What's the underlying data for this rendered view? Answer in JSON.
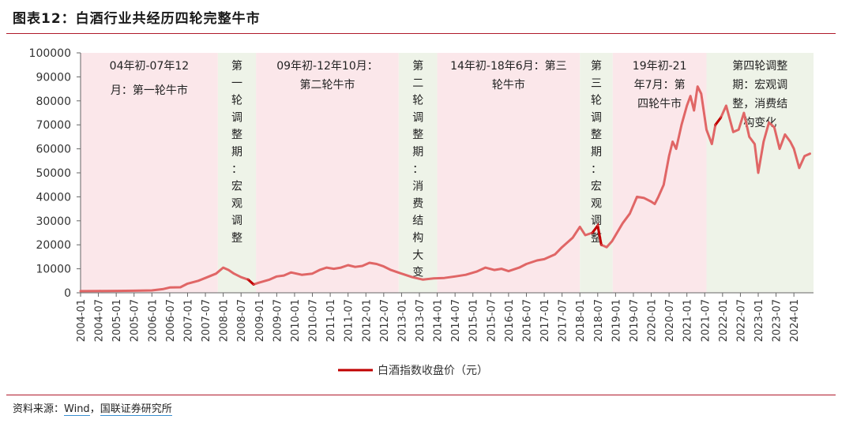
{
  "header": {
    "title": "图表12：白酒行业共经历四轮完整牛市"
  },
  "footer": {
    "source_prefix": "资料来源：",
    "source_wind": "Wind",
    "source_sep": "，",
    "source_org": "国联证券研究所"
  },
  "chart_data": {
    "type": "line",
    "title": "图表12：白酒行业共经历四轮完整牛市",
    "xlabel": "",
    "ylabel": "",
    "ylim": [
      0,
      100000
    ],
    "yticks": [
      0,
      10000,
      20000,
      30000,
      40000,
      50000,
      60000,
      70000,
      80000,
      90000,
      100000
    ],
    "grid": false,
    "legend_position": "bottom-center",
    "line_color": "#e06666",
    "highlight_color": "#c00000",
    "bull_color": "#fbe7ea",
    "adjust_color": "#eef3e8",
    "x_categories": [
      "2004-01",
      "2004-07",
      "2005-01",
      "2005-07",
      "2006-01",
      "2006-07",
      "2007-01",
      "2007-07",
      "2008-01",
      "2008-07",
      "2009-01",
      "2009-07",
      "2010-01",
      "2010-07",
      "2011-01",
      "2011-07",
      "2012-01",
      "2012-07",
      "2013-01",
      "2013-07",
      "2014-01",
      "2014-07",
      "2015-01",
      "2015-07",
      "2016-01",
      "2016-07",
      "2017-01",
      "2017-07",
      "2018-01",
      "2018-07",
      "2019-01",
      "2019-07",
      "2020-01",
      "2020-07",
      "2021-01",
      "2021-07",
      "2022-01",
      "2022-07",
      "2023-01",
      "2023-07",
      "2024-01"
    ],
    "series": [
      {
        "name": "白酒指数收盘价（元）",
        "x": [
          2004.0,
          2004.5,
          2005.0,
          2005.5,
          2006.0,
          2006.3,
          2006.5,
          2006.8,
          2007.0,
          2007.3,
          2007.5,
          2007.8,
          2008.0,
          2008.15,
          2008.3,
          2008.5,
          2008.7,
          2008.85,
          2009.0,
          2009.3,
          2009.5,
          2009.7,
          2009.9,
          2010.2,
          2010.5,
          2010.7,
          2010.9,
          2011.1,
          2011.3,
          2011.5,
          2011.7,
          2011.9,
          2012.1,
          2012.3,
          2012.5,
          2012.7,
          2012.9,
          2013.1,
          2013.3,
          2013.6,
          2013.9,
          2014.2,
          2014.5,
          2014.8,
          2015.1,
          2015.35,
          2015.6,
          2015.8,
          2016.0,
          2016.3,
          2016.5,
          2016.8,
          2017.0,
          2017.3,
          2017.5,
          2017.8,
          2018.0,
          2018.15,
          2018.35,
          2018.5,
          2018.6,
          2018.75,
          2018.9,
          2019.0,
          2019.2,
          2019.4,
          2019.6,
          2019.8,
          2020.0,
          2020.1,
          2020.2,
          2020.35,
          2020.5,
          2020.6,
          2020.7,
          2020.85,
          2021.0,
          2021.1,
          2021.2,
          2021.3,
          2021.4,
          2021.55,
          2021.7,
          2021.8,
          2021.95,
          2022.1,
          2022.3,
          2022.45,
          2022.6,
          2022.75,
          2022.9,
          2023.0,
          2023.15,
          2023.3,
          2023.45,
          2023.6,
          2023.75,
          2023.9,
          2024.0,
          2024.15,
          2024.3,
          2024.45
        ],
        "values": [
          700,
          750,
          800,
          850,
          1000,
          1500,
          2200,
          2300,
          3800,
          5000,
          6200,
          8000,
          10500,
          9500,
          8000,
          6500,
          5500,
          3500,
          4200,
          5500,
          6800,
          7200,
          8500,
          7500,
          8000,
          9500,
          10500,
          10000,
          10500,
          11500,
          10800,
          11200,
          12500,
          12000,
          11000,
          9500,
          8500,
          7500,
          6500,
          5500,
          6000,
          6200,
          6800,
          7500,
          8800,
          10500,
          9500,
          10000,
          9000,
          10500,
          12000,
          13500,
          14000,
          16000,
          19000,
          23000,
          27500,
          24000,
          25000,
          28000,
          20000,
          19000,
          21500,
          24000,
          29000,
          33000,
          40000,
          39500,
          38000,
          37000,
          40000,
          45000,
          57000,
          63000,
          60000,
          70000,
          78000,
          82000,
          76000,
          86000,
          83000,
          68000,
          62000,
          70000,
          73000,
          78000,
          67000,
          68000,
          75000,
          65000,
          62000,
          50000,
          63000,
          71000,
          69000,
          60000,
          66000,
          63000,
          60000,
          52000,
          57000,
          58000
        ],
        "highlight_segments": [
          [
            2008.7,
            2008.85
          ],
          [
            2018.35,
            2018.6
          ],
          [
            2021.8,
            2021.95
          ]
        ]
      }
    ],
    "periods": [
      {
        "kind": "bull",
        "start": 2004.0,
        "end": 2007.85,
        "lines": [
          "04年初-07年12",
          "月：第一轮牛市"
        ],
        "label_align": "left-block"
      },
      {
        "kind": "adjust",
        "start": 2007.85,
        "end": 2008.92,
        "lines": [
          "第",
          "一",
          "轮",
          "调",
          "整",
          "期",
          "：",
          "宏",
          "观",
          "调",
          "整"
        ]
      },
      {
        "kind": "bull",
        "start": 2008.92,
        "end": 2012.92,
        "lines": [
          "09年初-12年10月：",
          "第二轮牛市"
        ]
      },
      {
        "kind": "adjust",
        "start": 2012.92,
        "end": 2014.0,
        "lines": [
          "第",
          "二",
          "轮",
          "调",
          "整",
          "期",
          "：",
          "消",
          "费",
          "结",
          "构",
          "大",
          "变"
        ]
      },
      {
        "kind": "bull",
        "start": 2014.0,
        "end": 2018.0,
        "lines": [
          "14年初-18年6月：第三",
          "轮牛市"
        ]
      },
      {
        "kind": "adjust",
        "start": 2018.0,
        "end": 2018.92,
        "lines": [
          "第",
          "三",
          "轮",
          "调",
          "整",
          "期",
          "：",
          "宏",
          "观",
          "调",
          "整"
        ]
      },
      {
        "kind": "bull",
        "start": 2018.92,
        "end": 2021.55,
        "lines": [
          "19年初-21",
          "年7月：第",
          "四轮牛市"
        ]
      },
      {
        "kind": "adjust",
        "start": 2021.55,
        "end": 2024.55,
        "lines": [
          "第四轮调整",
          "期：宏观调",
          "整，消费结",
          "构变化"
        ]
      }
    ]
  }
}
